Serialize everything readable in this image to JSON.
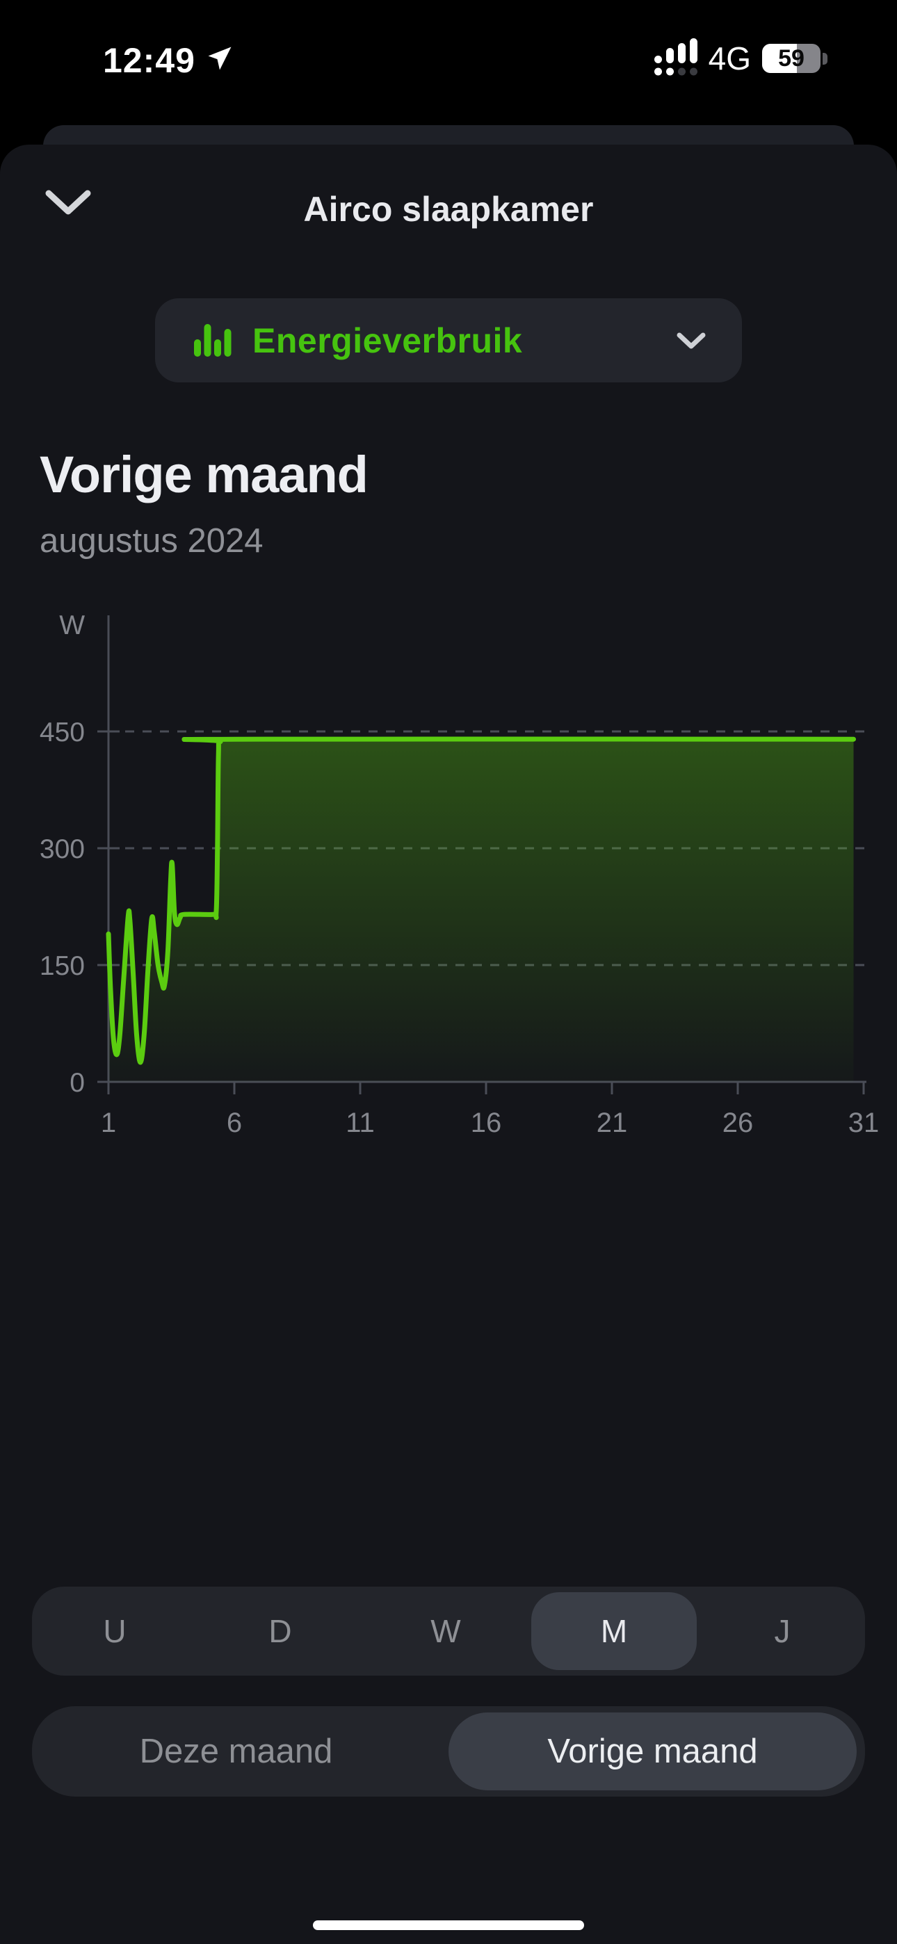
{
  "status_bar": {
    "time": "12:49",
    "network": "4G",
    "battery_percent": "59",
    "icons": [
      "location-arrow-icon",
      "cellular-signal-icon",
      "battery-icon"
    ]
  },
  "sheet": {
    "title": "Airco slaapkamer"
  },
  "metric_selector": {
    "label": "Energieverbruik",
    "icon": "bar-chart-icon",
    "chevron_icon": "chevron-down-icon"
  },
  "period": {
    "heading": "Vorige maand",
    "subheading": "augustus 2024"
  },
  "chart_data": {
    "type": "area",
    "title": "Energieverbruik — Vorige maand (augustus 2024)",
    "ylabel": "W",
    "xlabel": "",
    "unit": "W",
    "x_range": [
      1,
      31
    ],
    "y_range": [
      0,
      600
    ],
    "x_ticks": [
      1,
      6,
      11,
      16,
      21,
      26,
      31
    ],
    "y_ticks": [
      0,
      150,
      300,
      450
    ],
    "grid": "dashed-horizontal",
    "legend": false,
    "series": [
      {
        "name": "Energieverbruik (W)",
        "points": [
          [
            1.0,
            190
          ],
          [
            1.08,
            120
          ],
          [
            1.2,
            55
          ],
          [
            1.33,
            35
          ],
          [
            1.45,
            60
          ],
          [
            1.6,
            130
          ],
          [
            1.78,
            212
          ],
          [
            1.85,
            208
          ],
          [
            1.98,
            140
          ],
          [
            2.12,
            60
          ],
          [
            2.27,
            25
          ],
          [
            2.42,
            62
          ],
          [
            2.57,
            145
          ],
          [
            2.72,
            210
          ],
          [
            2.82,
            192
          ],
          [
            2.97,
            150
          ],
          [
            3.12,
            128
          ],
          [
            3.22,
            123
          ],
          [
            3.36,
            168
          ],
          [
            3.47,
            258
          ],
          [
            3.53,
            280
          ],
          [
            3.62,
            218
          ],
          [
            3.72,
            202
          ],
          [
            3.85,
            211
          ],
          [
            4.0,
            215
          ],
          [
            5.15,
            215
          ],
          [
            5.28,
            218
          ],
          [
            5.33,
            300
          ],
          [
            5.37,
            420
          ],
          [
            5.45,
            437
          ],
          [
            6.0,
            440
          ],
          [
            30.6,
            440
          ]
        ]
      }
    ]
  },
  "range_selector": {
    "options": [
      "U",
      "D",
      "W",
      "M",
      "J"
    ],
    "selected": "M"
  },
  "month_selector": {
    "options": [
      "Deze maand",
      "Vorige maand"
    ],
    "selected": "Vorige maand"
  },
  "colors": {
    "accent_green": "#46c30f",
    "line_green": "#5bcc10",
    "sheet_bg": "#14151a",
    "behind_card_bg": "#1e2027",
    "control_bg": "#23252b",
    "selected_pill_bg": "#3a3e47",
    "grid_line": "#4a4d57",
    "axis_label": "#85878e",
    "muted_text": "#8e9095"
  }
}
